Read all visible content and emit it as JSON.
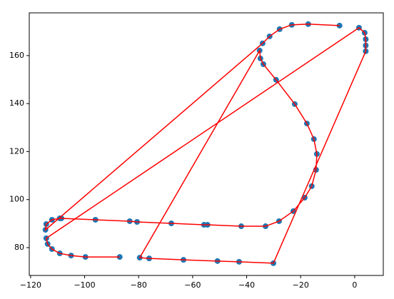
{
  "chart_data": {
    "type": "line",
    "x": [
      -5.6,
      -17.2,
      -23.3,
      -27.8,
      -31.5,
      -34.1,
      -114.5,
      -114.2,
      -112.1,
      -109.2,
      -108.6,
      -96.0,
      -83.3,
      -80.6,
      -67.9,
      -55.8,
      -54.5,
      -42.0,
      -33.0,
      -28.0,
      -22.7,
      -18.5,
      -15.9,
      -14.3,
      -14.0,
      -15.1,
      -17.7,
      -22.2,
      -29.1,
      -33.8,
      -34.9,
      -35.2,
      -79.6,
      -76.1,
      -63.4,
      -50.8,
      -42.8,
      -30.1,
      4.1,
      4.1,
      4.1,
      3.7,
      1.6,
      -114.2,
      -113.7,
      -112.1,
      -109.2,
      -105.0,
      -99.7,
      -87.0
    ],
    "series": [
      {
        "color": "#ff0000",
        "marker_color": "#1f77b4",
        "values": [
          172.5,
          173.1,
          172.8,
          171.0,
          168.0,
          165.1,
          87.4,
          89.8,
          91.6,
          92.2,
          92.2,
          91.6,
          91.0,
          90.7,
          90.1,
          89.5,
          89.5,
          88.9,
          88.9,
          91.0,
          95.2,
          100.8,
          105.6,
          112.4,
          119.0,
          125.2,
          131.7,
          139.8,
          149.9,
          156.4,
          158.8,
          162.1,
          75.8,
          75.5,
          74.9,
          74.4,
          74.1,
          73.5,
          161.8,
          164.2,
          166.8,
          169.5,
          171.6,
          83.9,
          81.5,
          79.4,
          77.6,
          76.7,
          76.1,
          76.1
        ]
      }
    ],
    "xlim": [
      -120.5,
      10.6
    ],
    "ylim": [
      68.4,
      177.8
    ],
    "xticks": [
      {
        "value": -120,
        "label": "−120"
      },
      {
        "value": -100,
        "label": "−100"
      },
      {
        "value": -80,
        "label": "−80"
      },
      {
        "value": -60,
        "label": "−60"
      },
      {
        "value": -40,
        "label": "−40"
      },
      {
        "value": -20,
        "label": "−20"
      },
      0
    ],
    "yticks": [
      80,
      100,
      120,
      140,
      160
    ]
  }
}
